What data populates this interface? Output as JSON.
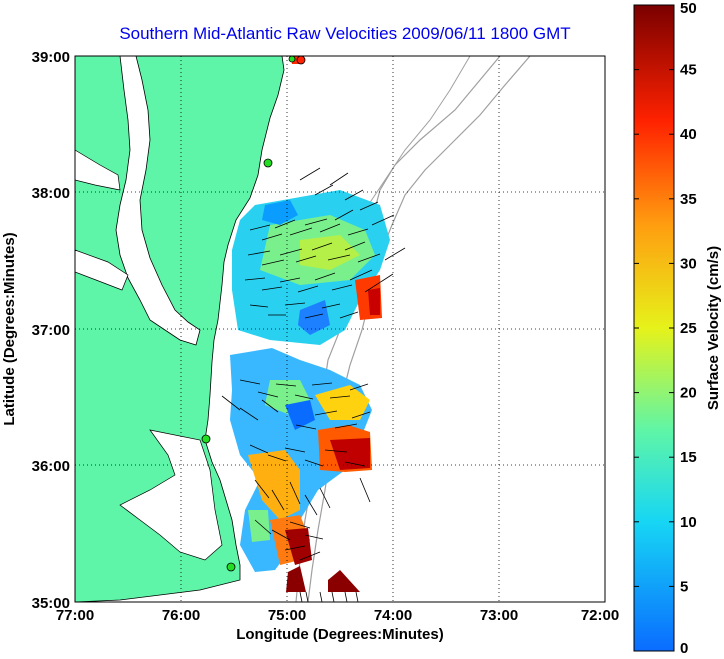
{
  "title": "Southern Mid-Atlantic Raw Velocities 2009/06/11 1800 GMT",
  "xlabel": "Longitude (Degrees:Minutes)",
  "ylabel": "Latitude (Degrees:Minutes)",
  "x_ticks": [
    "77:00",
    "76:00",
    "75:00",
    "74:00",
    "73:00",
    "72:00"
  ],
  "y_ticks": [
    "39:00",
    "38:00",
    "37:00",
    "36:00",
    "35:00"
  ],
  "colorbar": {
    "label": "Surface Velocity (cm/s)",
    "ticks": [
      "0",
      "5",
      "10",
      "15",
      "20",
      "25",
      "30",
      "35",
      "40",
      "45",
      "50"
    ],
    "range": [
      0,
      50
    ]
  },
  "map": {
    "lon_range": [
      -77.0,
      -72.0
    ],
    "lat_range": [
      35.0,
      39.0
    ],
    "land_color": "#5ef5a8",
    "contour_color": "#a0a0a0",
    "station_color": "#22dd22",
    "grid": "dotted"
  }
}
